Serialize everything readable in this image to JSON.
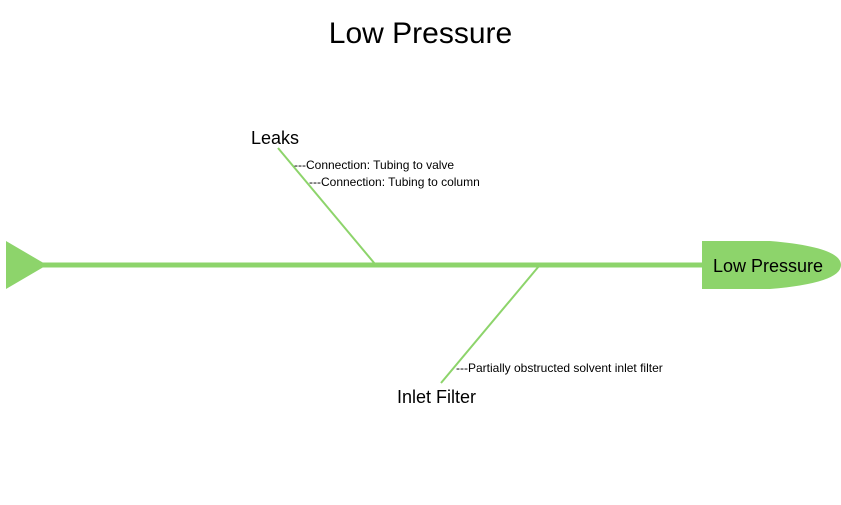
{
  "title": "Low Pressure",
  "effect": "Low Pressure",
  "accent_color": "#8dd46b",
  "categories": [
    {
      "name": "Leaks",
      "causes": [
        "---Connection: Tubing to valve",
        "---Connection: Tubing to column"
      ]
    },
    {
      "name": "Inlet Filter",
      "causes": [
        "---Partially obstructed solvent inlet filter"
      ]
    }
  ]
}
